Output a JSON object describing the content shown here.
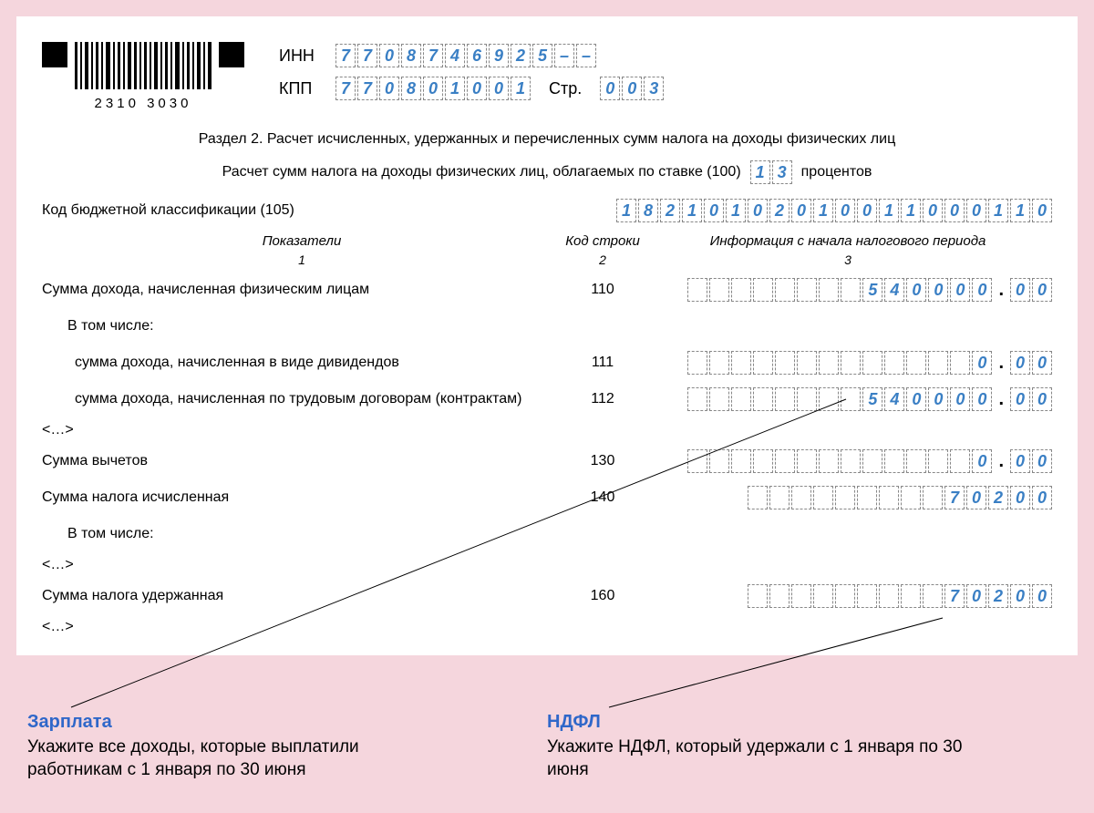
{
  "barcode_number": "2310 3030",
  "inn_label": "ИНН",
  "inn": [
    "7",
    "7",
    "0",
    "8",
    "7",
    "4",
    "6",
    "9",
    "2",
    "5",
    "–",
    "–"
  ],
  "kpp_label": "КПП",
  "kpp": [
    "7",
    "7",
    "0",
    "8",
    "0",
    "1",
    "0",
    "0",
    "1"
  ],
  "page_label": "Стр.",
  "page": [
    "0",
    "0",
    "3"
  ],
  "section_title": "Раздел 2. Расчет исчисленных, удержанных и перечисленных сумм налога на доходы физических лиц",
  "sub_before": "Расчет сумм налога на доходы физических лиц, облагаемых по ставке (100)",
  "rate": [
    "1",
    "3"
  ],
  "sub_after": "процентов",
  "kbk_label": "Код бюджетной классификации (105)",
  "kbk": [
    "1",
    "8",
    "2",
    "1",
    "0",
    "1",
    "0",
    "2",
    "0",
    "1",
    "0",
    "0",
    "1",
    "1",
    "0",
    "0",
    "0",
    "1",
    "1",
    "0"
  ],
  "head_1": "Показатели",
  "head_2": "Код строки",
  "head_3": "Информация с начала налогового периода",
  "col_1": "1",
  "col_2": "2",
  "col_3": "3",
  "r110_label": "Сумма дохода, начисленная физическим лицам",
  "r110_code": "110",
  "r110_int": [
    "",
    "",
    "",
    "",
    "",
    "",
    "",
    "",
    "5",
    "4",
    "0",
    "0",
    "0",
    "0"
  ],
  "r110_dec": [
    "0",
    "0"
  ],
  "including": "В том числе:",
  "r111_label": "сумма дохода, начисленная в виде дивидендов",
  "r111_code": "111",
  "r111_int": [
    "",
    "",
    "",
    "",
    "",
    "",
    "",
    "",
    "",
    "",
    "",
    "",
    "",
    "0"
  ],
  "r111_dec": [
    "0",
    "0"
  ],
  "r112_label": "сумма дохода, начисленная по трудовым договорам (контрактам)",
  "r112_code": "112",
  "r112_int": [
    "",
    "",
    "",
    "",
    "",
    "",
    "",
    "",
    "5",
    "4",
    "0",
    "0",
    "0",
    "0"
  ],
  "r112_dec": [
    "0",
    "0"
  ],
  "ellipsis": "<…>",
  "r130_label": "Сумма вычетов",
  "r130_code": "130",
  "r130_int": [
    "",
    "",
    "",
    "",
    "",
    "",
    "",
    "",
    "",
    "",
    "",
    "",
    "",
    "0"
  ],
  "r130_dec": [
    "0",
    "0"
  ],
  "r140_label": "Сумма налога исчисленная",
  "r140_code": "140",
  "r140_int": [
    "",
    "",
    "",
    "",
    "",
    "",
    "",
    "",
    "",
    "7",
    "0",
    "2",
    "0",
    "0"
  ],
  "r160_label": "Сумма налога удержанная",
  "r160_code": "160",
  "r160_int": [
    "",
    "",
    "",
    "",
    "",
    "",
    "",
    "",
    "",
    "7",
    "0",
    "2",
    "0",
    "0"
  ],
  "callouts": {
    "left_title": "Зарплата",
    "left_text": "Укажите все доходы, которые выплатили работникам с 1 января по 30 июня",
    "right_title": "НДФЛ",
    "right_text": "Укажите НДФЛ, который удержали с 1 января по 30 июня"
  },
  "colors": {
    "cell_text": "#3a7fc4",
    "callout_title": "#2f67c9",
    "page_bg": "#f5d6dd"
  }
}
